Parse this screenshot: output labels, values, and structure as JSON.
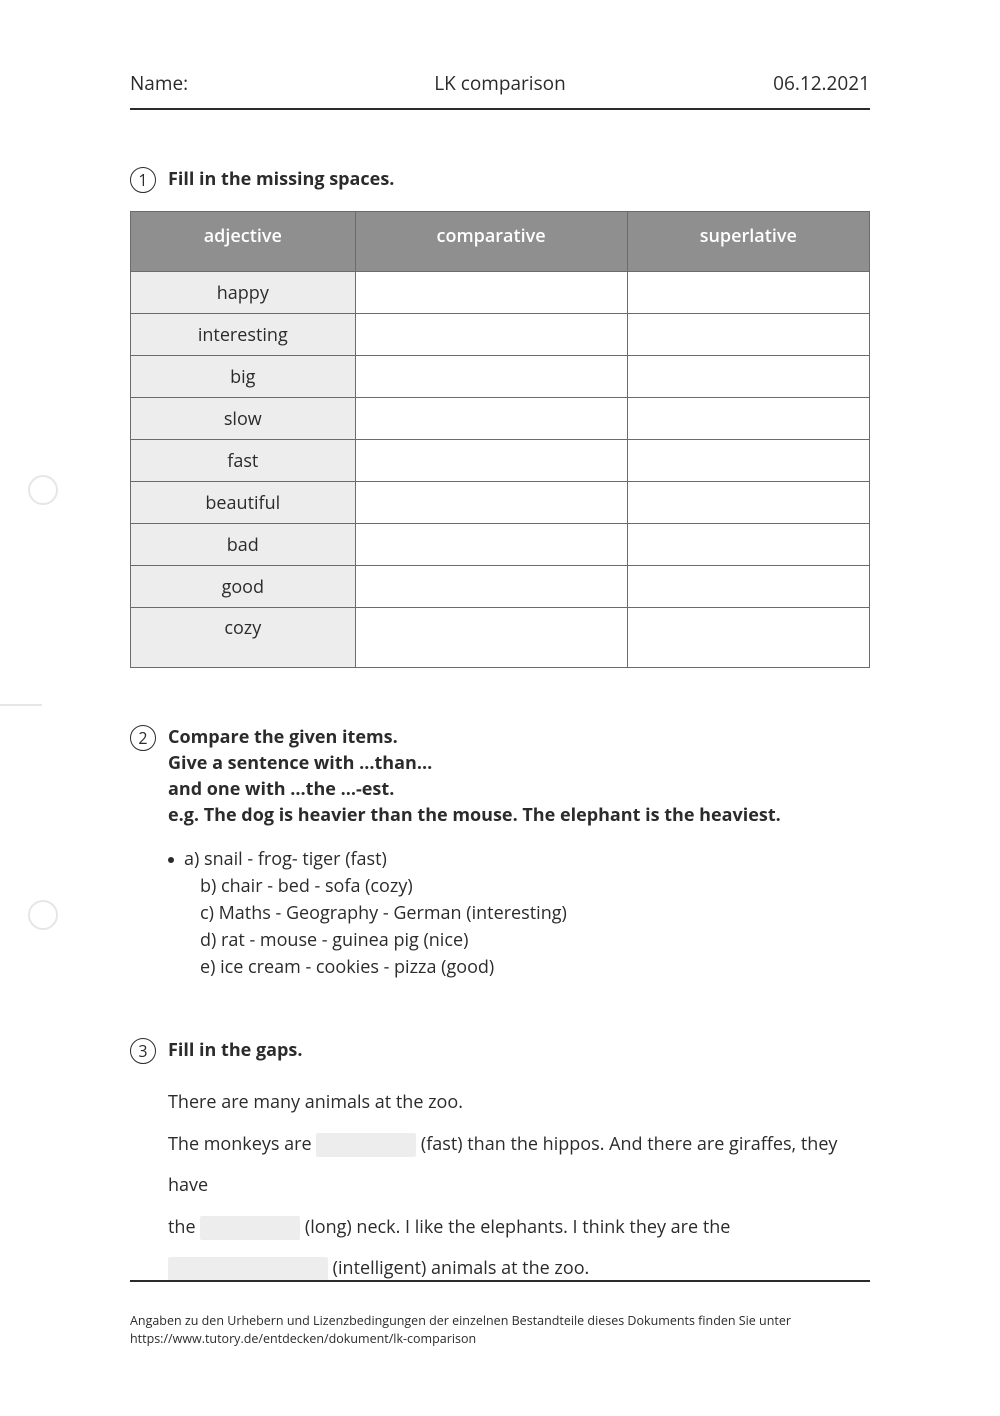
{
  "header": {
    "name_label": "Name:",
    "title": "LK comparison",
    "date": "06.12.2021"
  },
  "task1": {
    "number": "1",
    "title": "Fill in the missing spaces.",
    "table": {
      "columns": [
        "adjective",
        "comparative",
        "superlative"
      ],
      "rows": [
        [
          "happy",
          "",
          ""
        ],
        [
          "interesting",
          "",
          ""
        ],
        [
          "big",
          "",
          ""
        ],
        [
          "slow",
          "",
          ""
        ],
        [
          "fast",
          "",
          ""
        ],
        [
          "beautiful",
          "",
          ""
        ],
        [
          "bad",
          "",
          ""
        ],
        [
          "good",
          "",
          ""
        ],
        [
          "cozy",
          "",
          ""
        ]
      ],
      "header_bg": "#8f8f8f",
      "header_fg": "#ffffff",
      "adj_col_bg": "#ededed",
      "border_color": "#6b6b6b"
    }
  },
  "task2": {
    "number": "2",
    "title_line1": "Compare the given items.",
    "title_line2": "Give a sentence with …than…",
    "title_line3": "and one with …the …-est.",
    "title_line4": "e.g. The dog is heavier than the mouse. The elephant is the heaviest.",
    "items": [
      "a) snail - frog- tiger (fast)",
      "b) chair - bed - sofa (cozy)",
      "c) Maths - Geography - German (interesting)",
      "d) rat - mouse - guinea pig (nice)",
      "e) ice cream - cookies - pizza (good)"
    ]
  },
  "task3": {
    "number": "3",
    "title": "Fill in the gaps.",
    "line1": "There are many animals at the zoo.",
    "seg_a": "The monkeys are ",
    "seg_b": " (fast) than the hippos. And there are giraffes, they have",
    "seg_c": "the ",
    "seg_d": " (long) neck. I like the elephants. I think they are the",
    "seg_e": " (intelligent) animals at the zoo.",
    "gap_bg": "#ededed"
  },
  "footer": {
    "line1": "Angaben zu den Urhebern und Lizenzbedingungen der einzelnen Bestandteile dieses Dokuments finden Sie unter",
    "line2": "https://www.tutory.de/entdecken/dokument/lk-comparison"
  }
}
